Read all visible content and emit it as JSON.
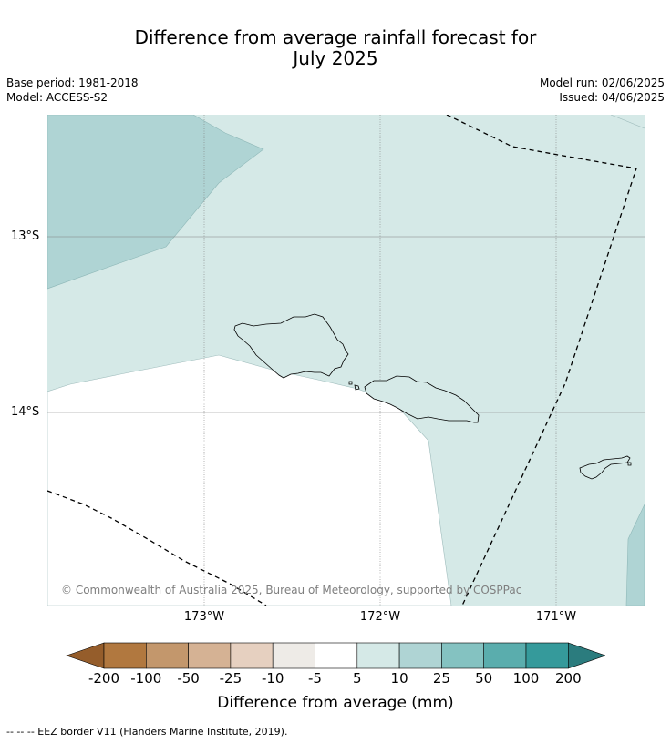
{
  "title_line1": "Difference from average rainfall forecast for",
  "title_line2": "July 2025",
  "base_period": "Base period: 1981-2018",
  "model": "Model: ACCESS-S2",
  "model_run": "Model run: 02/06/2025",
  "issued": "Issued: 04/06/2025",
  "lat_labels": [
    "13°S",
    "14°S"
  ],
  "lon_labels": [
    "173°W",
    "172°W",
    "171°W"
  ],
  "copyright": "© Commonwealth of Australia 2025, Bureau of Meteorology, supported by COSPPac",
  "colorbar": {
    "title": "Difference from average (mm)",
    "ticks": [
      "-200",
      "-100",
      "-50",
      "-25",
      "-10",
      "-5",
      "5",
      "10",
      "25",
      "50",
      "100",
      "200"
    ],
    "colors": [
      "#955d2b",
      "#b1783f",
      "#c3976c",
      "#d5b294",
      "#e6d0c0",
      "#eeebe7",
      "#ffffff",
      "#d5e9e7",
      "#afd4d4",
      "#84c2c1",
      "#5aadad",
      "#359a9b",
      "#2b7c7e"
    ]
  },
  "map_colors": {
    "bin_5_10": "#d5e9e7",
    "bin_10_25": "#afd4d4",
    "bin_neutral": "#ffffff",
    "eez_line": "#000000",
    "grid": "#808080"
  },
  "footnote": "--  --  -- EEZ border V11 (Flanders Marine Institute, 2019)."
}
